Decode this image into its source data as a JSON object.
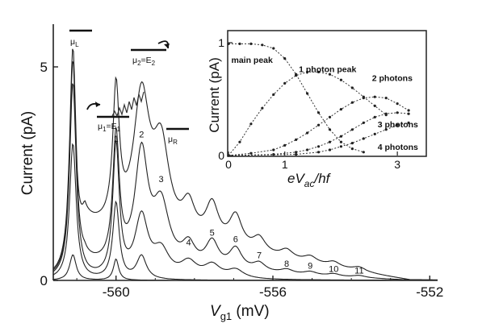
{
  "chart_data": {
    "type": "line",
    "xlabel": "V",
    "xlabel_sub": "g1",
    "xlabel_unit": " (mV)",
    "ylabel": "Current (pA)",
    "xlim": [
      -561.6,
      -551.8
    ],
    "ylim": [
      0,
      6.0
    ],
    "x_tick_labels": [
      "-560",
      "-556",
      "-552"
    ],
    "x_ticks": [
      -560,
      -556,
      -552
    ],
    "y_tick_labels": [
      "0",
      "5"
    ],
    "y_ticks": [
      0,
      5
    ],
    "grid": false,
    "legend": "none",
    "peak_labels": [
      {
        "text": "1",
        "x": -560.0,
        "y": 3.25
      },
      {
        "text": "2",
        "x": -559.35,
        "y": 3.35
      },
      {
        "text": "3",
        "x": -558.85,
        "y": 2.3
      },
      {
        "text": "4",
        "x": -558.15,
        "y": 0.82
      },
      {
        "text": "5",
        "x": -557.55,
        "y": 1.05
      },
      {
        "text": "6",
        "x": -556.95,
        "y": 0.9
      },
      {
        "text": "7",
        "x": -556.35,
        "y": 0.52
      },
      {
        "text": "8",
        "x": -555.65,
        "y": 0.32
      },
      {
        "text": "9",
        "x": -555.05,
        "y": 0.27
      },
      {
        "text": "10",
        "x": -554.45,
        "y": 0.2
      },
      {
        "text": "11",
        "x": -553.8,
        "y": 0.16
      }
    ],
    "series": [
      {
        "peaks": [
          [
            -561.1,
            0.6,
            0.1
          ],
          [
            -560.0,
            0.5,
            0.08
          ]
        ]
      },
      {
        "peaks": [
          [
            -561.1,
            3.2,
            0.1
          ],
          [
            -560.0,
            1.8,
            0.1
          ],
          [
            -559.35,
            0.55,
            0.15
          ]
        ]
      },
      {
        "peaks": [
          [
            -561.1,
            4.6,
            0.1
          ],
          [
            -560.0,
            3.1,
            0.1
          ],
          [
            -559.35,
            1.4,
            0.2
          ],
          [
            -558.85,
            0.6,
            0.25
          ],
          [
            -558.15,
            0.35,
            0.25
          ],
          [
            -557.55,
            0.3,
            0.25
          ],
          [
            -556.95,
            0.2,
            0.25
          ]
        ]
      },
      {
        "peaks": [
          [
            -561.1,
            5.1,
            0.1
          ],
          [
            -560.0,
            3.0,
            0.1
          ],
          [
            -559.35,
            2.6,
            0.2
          ],
          [
            -558.85,
            1.4,
            0.25
          ],
          [
            -558.15,
            0.5,
            0.2
          ],
          [
            -557.55,
            0.62,
            0.2
          ],
          [
            -556.95,
            0.5,
            0.2
          ],
          [
            -556.35,
            0.2,
            0.2
          ],
          [
            -555.65,
            0.1,
            0.2
          ],
          [
            -555.05,
            0.08,
            0.2
          ],
          [
            -554.45,
            0.06,
            0.2
          ],
          [
            -553.8,
            0.05,
            0.2
          ]
        ],
        "background": 0.3
      },
      {
        "peaks": [
          [
            -561.1,
            5.35,
            0.1
          ],
          [
            -560.0,
            3.15,
            0.1
          ],
          [
            -559.35,
            3.15,
            0.25
          ],
          [
            -558.85,
            2.0,
            0.25
          ],
          [
            -558.15,
            0.75,
            0.2
          ],
          [
            -557.55,
            0.9,
            0.2
          ],
          [
            -556.95,
            0.75,
            0.2
          ],
          [
            -556.35,
            0.35,
            0.2
          ],
          [
            -555.65,
            0.2,
            0.2
          ],
          [
            -555.05,
            0.15,
            0.2
          ],
          [
            -554.45,
            0.12,
            0.2
          ],
          [
            -553.8,
            0.1,
            0.2
          ]
        ],
        "background": 1.2
      }
    ],
    "inset": {
      "type": "line",
      "xlabel": "eV",
      "xlabel_sub": "ac",
      "xlabel_tail": "/hf",
      "ylabel": "Current (pA)",
      "xlim": [
        0,
        3.5
      ],
      "ylim": [
        0,
        1.1
      ],
      "x_tick_labels": [
        "0",
        "1",
        "3"
      ],
      "x_ticks": [
        0,
        1,
        3
      ],
      "y_tick_labels": [
        "0",
        "1"
      ],
      "y_ticks": [
        0,
        1
      ],
      "labels": [
        {
          "text": "main peak",
          "x": 0.05,
          "y": 0.82
        },
        {
          "text": "1 photon peak",
          "x": 1.25,
          "y": 0.74
        },
        {
          "text": "2 photons",
          "x": 2.55,
          "y": 0.66
        },
        {
          "text": "3 photons",
          "x": 2.65,
          "y": 0.25
        },
        {
          "text": "4 photons",
          "x": 2.65,
          "y": 0.05
        }
      ],
      "series": [
        {
          "name": "main peak",
          "x": [
            0,
            0.2,
            0.4,
            0.6,
            0.8,
            1.0,
            1.2,
            1.4,
            1.6,
            1.8,
            2.0,
            2.2,
            2.4
          ],
          "y": [
            0.99,
            0.99,
            0.99,
            0.98,
            0.95,
            0.86,
            0.72,
            0.55,
            0.38,
            0.23,
            0.12,
            0.06,
            0.03
          ]
        },
        {
          "name": "1 photon peak",
          "x": [
            0,
            0.2,
            0.4,
            0.6,
            0.8,
            1.0,
            1.2,
            1.4,
            1.6,
            1.8,
            2.0,
            2.2,
            2.4,
            2.6,
            2.8
          ],
          "y": [
            0,
            0.12,
            0.28,
            0.42,
            0.54,
            0.64,
            0.71,
            0.74,
            0.74,
            0.72,
            0.67,
            0.6,
            0.52,
            0.44,
            0.36
          ]
        },
        {
          "name": "2 photons",
          "x": [
            0,
            0.4,
            0.8,
            1.0,
            1.2,
            1.4,
            1.6,
            1.8,
            2.0,
            2.2,
            2.4,
            2.6,
            2.8,
            3.0,
            3.2
          ],
          "y": [
            0,
            0.02,
            0.05,
            0.09,
            0.14,
            0.2,
            0.27,
            0.34,
            0.41,
            0.47,
            0.51,
            0.52,
            0.51,
            0.46,
            0.4
          ]
        },
        {
          "name": "3 photons",
          "x": [
            0,
            0.8,
            1.2,
            1.4,
            1.6,
            1.8,
            2.0,
            2.2,
            2.4,
            2.6,
            2.8,
            3.0,
            3.2
          ],
          "y": [
            0,
            0.01,
            0.03,
            0.05,
            0.08,
            0.12,
            0.17,
            0.23,
            0.29,
            0.34,
            0.37,
            0.38,
            0.37
          ]
        },
        {
          "name": "4 photons",
          "x": [
            0,
            1.2,
            1.6,
            1.8,
            2.0,
            2.2,
            2.4,
            2.6,
            2.8,
            3.0,
            3.2
          ],
          "y": [
            0,
            0.01,
            0.03,
            0.05,
            0.08,
            0.11,
            0.15,
            0.19,
            0.23,
            0.27,
            0.29
          ]
        }
      ]
    },
    "schematic": {
      "mu_L": {
        "base": "μ",
        "sub": "L"
      },
      "mu_R": {
        "base": "μ",
        "sub": "R"
      },
      "mu_1": {
        "base": "μ",
        "sub1": "1",
        "eq": "=E",
        "sub2": "1"
      },
      "mu_2": {
        "base": "μ",
        "sub1": "2",
        "eq": "=E",
        "sub2": "2"
      }
    }
  }
}
